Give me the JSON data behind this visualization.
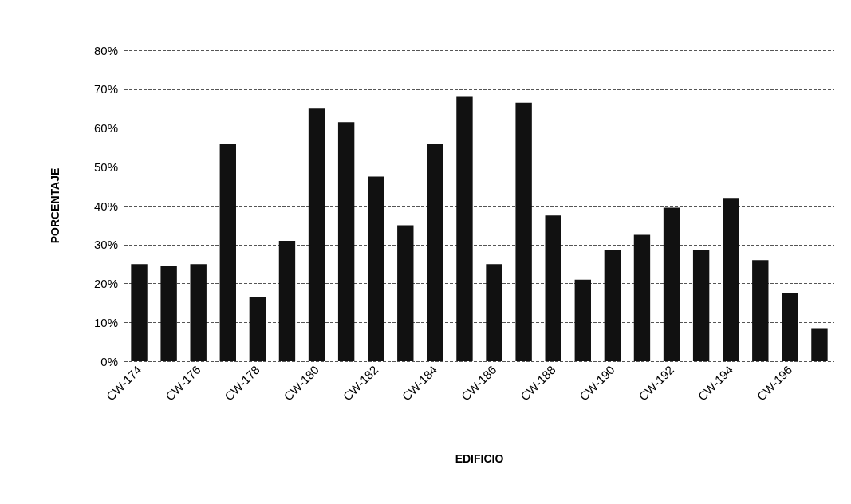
{
  "chart_data": {
    "type": "bar",
    "xlabel": "EDIFICIO",
    "ylabel": "PORCENTAJE",
    "categories": [
      "CW-174",
      null,
      "CW-176",
      null,
      "CW-178",
      null,
      "CW-180",
      null,
      "CW-182",
      null,
      "CW-184",
      null,
      "CW-186",
      null,
      "CW-188",
      null,
      "CW-190",
      null,
      "CW-192",
      null,
      "CW-194",
      null,
      "CW-196",
      null
    ],
    "values": [
      25,
      24.5,
      25,
      56,
      16.5,
      31,
      65,
      61.5,
      47.5,
      35,
      56,
      68,
      25,
      66.5,
      37.5,
      21,
      28.5,
      32.5,
      39.5,
      28.5,
      42,
      26,
      17.5,
      8.5
    ],
    "color": "#111111",
    "ylim": [
      0,
      80
    ],
    "yticks": [
      {
        "value": 0,
        "label": "0%"
      },
      {
        "value": 10,
        "label": "10%"
      },
      {
        "value": 20,
        "label": "20%"
      },
      {
        "value": 30,
        "label": "30%"
      },
      {
        "value": 40,
        "label": "40%"
      },
      {
        "value": 50,
        "label": "50%"
      },
      {
        "value": 60,
        "label": "60%"
      },
      {
        "value": 70,
        "label": "70%"
      },
      {
        "value": 80,
        "label": "80%"
      }
    ],
    "grid": "y"
  }
}
